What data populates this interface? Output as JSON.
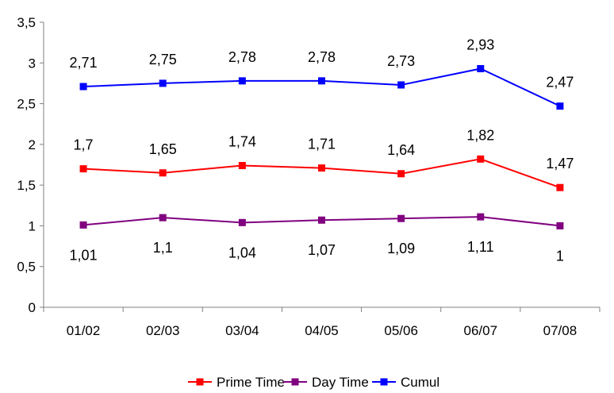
{
  "chart_data": {
    "type": "line",
    "title": "",
    "xlabel": "",
    "ylabel": "",
    "categories": [
      "01/02",
      "02/03",
      "03/04",
      "04/05",
      "05/06",
      "06/07",
      "07/08"
    ],
    "ylim": [
      0,
      3.5
    ],
    "yticks": [
      "0",
      "0,5",
      "1",
      "1,5",
      "2",
      "2,5",
      "3",
      "3,5"
    ],
    "grid": false,
    "legend": "bottom",
    "series": [
      {
        "name": "Prime Time",
        "color": "#ff0000",
        "values": [
          1.7,
          1.65,
          1.74,
          1.71,
          1.64,
          1.82,
          1.47
        ],
        "labels": [
          "1,7",
          "1,65",
          "1,74",
          "1,71",
          "1,64",
          "1,82",
          "1,47"
        ],
        "label_position": "above"
      },
      {
        "name": "Day Time",
        "color": "#800080",
        "values": [
          1.01,
          1.1,
          1.04,
          1.07,
          1.09,
          1.11,
          1.0
        ],
        "labels": [
          "1,01",
          "1,1",
          "1,04",
          "1,07",
          "1,09",
          "1,11",
          "1"
        ],
        "label_position": "below"
      },
      {
        "name": "Cumul",
        "color": "#0000ff",
        "values": [
          2.71,
          2.75,
          2.78,
          2.78,
          2.73,
          2.93,
          2.47
        ],
        "labels": [
          "2,71",
          "2,75",
          "2,78",
          "2,78",
          "2,73",
          "2,93",
          "2,47"
        ],
        "label_position": "above"
      }
    ],
    "legend_order": [
      "Prime Time",
      "Day Time",
      "Cumul"
    ]
  }
}
